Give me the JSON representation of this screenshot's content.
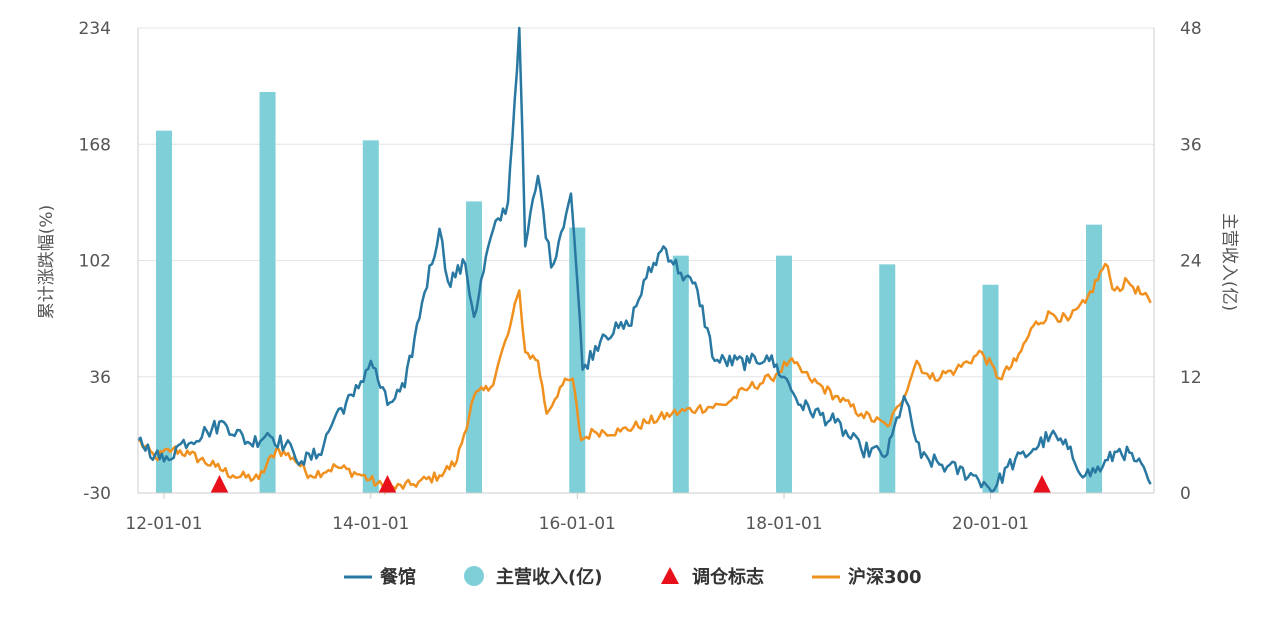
{
  "chart_data": {
    "type": "line",
    "ylabel": "累计涨跌幅(%)",
    "y2label": "主营收入(亿)",
    "ylim": [
      -30,
      234
    ],
    "y2lim": [
      0,
      48
    ],
    "yticks": [
      "234",
      "168",
      "102",
      "36",
      "-30"
    ],
    "y2ticks": [
      "48",
      "36",
      "24",
      "12",
      "0"
    ],
    "xlim": [
      "2011-10-01",
      "2021-08-01"
    ],
    "xticks": [
      "12-01-01",
      "14-01-01",
      "16-01-01",
      "18-01-01",
      "20-01-01"
    ],
    "xtick_dates": [
      "2012-01-01",
      "2014-01-01",
      "2016-01-01",
      "2018-01-01",
      "2020-01-01"
    ],
    "grid": "horizontal",
    "legend_position": "bottom",
    "colors": {
      "restaurant": "#2878a2",
      "revenue": "#7ecfd8",
      "rebalance": "#e8101a",
      "hs300": "#f0901e",
      "grid": "#e4e4e4",
      "axis": "#cccccc"
    },
    "series": [
      {
        "name": "餐馆",
        "kind": "line",
        "axis": "left",
        "points": [
          [
            "2011-10-01",
            0
          ],
          [
            "2011-12-01",
            -8
          ],
          [
            "2012-01-01",
            -12
          ],
          [
            "2012-03-01",
            -2
          ],
          [
            "2012-06-01",
            5
          ],
          [
            "2012-08-01",
            10
          ],
          [
            "2012-11-01",
            -2
          ],
          [
            "2013-01-01",
            4
          ],
          [
            "2013-04-01",
            -6
          ],
          [
            "2013-05-01",
            -12
          ],
          [
            "2013-07-01",
            -8
          ],
          [
            "2013-09-01",
            15
          ],
          [
            "2013-11-01",
            25
          ],
          [
            "2014-01-01",
            45
          ],
          [
            "2014-03-01",
            20
          ],
          [
            "2014-05-01",
            30
          ],
          [
            "2014-07-01",
            78
          ],
          [
            "2014-09-01",
            120
          ],
          [
            "2014-10-01",
            90
          ],
          [
            "2014-12-01",
            100
          ],
          [
            "2015-01-01",
            70
          ],
          [
            "2015-03-01",
            115
          ],
          [
            "2015-05-01",
            135
          ],
          [
            "2015-06-10",
            234
          ],
          [
            "2015-07-01",
            110
          ],
          [
            "2015-08-15",
            150
          ],
          [
            "2015-10-01",
            98
          ],
          [
            "2015-12-10",
            140
          ],
          [
            "2016-01-01",
            90
          ],
          [
            "2016-01-20",
            40
          ],
          [
            "2016-04-01",
            60
          ],
          [
            "2016-07-01",
            65
          ],
          [
            "2016-09-01",
            92
          ],
          [
            "2016-11-01",
            110
          ],
          [
            "2017-01-01",
            95
          ],
          [
            "2017-03-01",
            85
          ],
          [
            "2017-05-01",
            45
          ],
          [
            "2017-09-01",
            44
          ],
          [
            "2017-11-01",
            48
          ],
          [
            "2018-01-01",
            36
          ],
          [
            "2018-03-01",
            20
          ],
          [
            "2018-07-01",
            10
          ],
          [
            "2018-10-01",
            -5
          ],
          [
            "2019-01-01",
            -8
          ],
          [
            "2019-03-01",
            25
          ],
          [
            "2019-05-01",
            -10
          ],
          [
            "2019-08-01",
            -15
          ],
          [
            "2019-11-01",
            -20
          ],
          [
            "2020-01-15",
            -28
          ],
          [
            "2020-03-01",
            -15
          ],
          [
            "2020-06-01",
            -5
          ],
          [
            "2020-08-01",
            3
          ],
          [
            "2020-10-01",
            -5
          ],
          [
            "2020-12-01",
            -20
          ],
          [
            "2021-02-01",
            -15
          ],
          [
            "2021-04-01",
            -5
          ],
          [
            "2021-06-01",
            -12
          ],
          [
            "2021-07-20",
            -25
          ]
        ]
      },
      {
        "name": "主营收入(亿)",
        "kind": "bar",
        "axis": "right",
        "points": [
          [
            "2012-01-01",
            37.4
          ],
          [
            "2013-01-01",
            41.4
          ],
          [
            "2014-01-01",
            36.4
          ],
          [
            "2015-01-01",
            30.1
          ],
          [
            "2016-01-01",
            27.4
          ],
          [
            "2017-01-01",
            24.5
          ],
          [
            "2018-01-01",
            24.5
          ],
          [
            "2019-01-01",
            23.6
          ],
          [
            "2020-01-01",
            21.5
          ],
          [
            "2021-01-01",
            27.7
          ]
        ]
      },
      {
        "name": "调仓标志",
        "kind": "marker",
        "axis": "left",
        "points": [
          [
            "2012-07-15",
            -30
          ],
          [
            "2014-03-01",
            -30
          ],
          [
            "2020-07-01",
            -30
          ]
        ]
      },
      {
        "name": "沪深300",
        "kind": "line",
        "axis": "left",
        "points": [
          [
            "2011-10-01",
            0
          ],
          [
            "2011-12-01",
            -10
          ],
          [
            "2012-02-01",
            -5
          ],
          [
            "2012-04-01",
            -8
          ],
          [
            "2012-07-01",
            -15
          ],
          [
            "2012-09-01",
            -20
          ],
          [
            "2012-12-01",
            -22
          ],
          [
            "2013-02-01",
            -5
          ],
          [
            "2013-04-01",
            -10
          ],
          [
            "2013-06-01",
            -20
          ],
          [
            "2013-09-01",
            -15
          ],
          [
            "2013-12-01",
            -20
          ],
          [
            "2014-03-01",
            -28
          ],
          [
            "2014-06-01",
            -25
          ],
          [
            "2014-09-01",
            -20
          ],
          [
            "2014-11-01",
            -12
          ],
          [
            "2015-01-01",
            25
          ],
          [
            "2015-03-01",
            30
          ],
          [
            "2015-05-01",
            60
          ],
          [
            "2015-06-10",
            85
          ],
          [
            "2015-07-01",
            50
          ],
          [
            "2015-08-15",
            45
          ],
          [
            "2015-09-15",
            15
          ],
          [
            "2015-11-01",
            30
          ],
          [
            "2015-12-15",
            35
          ],
          [
            "2016-01-15",
            0
          ],
          [
            "2016-03-01",
            5
          ],
          [
            "2016-06-01",
            5
          ],
          [
            "2016-09-01",
            10
          ],
          [
            "2016-12-01",
            15
          ],
          [
            "2017-03-01",
            18
          ],
          [
            "2017-06-01",
            20
          ],
          [
            "2017-09-01",
            30
          ],
          [
            "2017-11-15",
            35
          ],
          [
            "2018-01-20",
            45
          ],
          [
            "2018-04-01",
            35
          ],
          [
            "2018-07-01",
            25
          ],
          [
            "2018-10-01",
            15
          ],
          [
            "2019-01-01",
            8
          ],
          [
            "2019-02-15",
            20
          ],
          [
            "2019-04-15",
            45
          ],
          [
            "2019-06-01",
            35
          ],
          [
            "2019-09-01",
            40
          ],
          [
            "2019-12-01",
            50
          ],
          [
            "2020-02-01",
            35
          ],
          [
            "2020-04-01",
            45
          ],
          [
            "2020-06-01",
            65
          ],
          [
            "2020-08-01",
            72
          ],
          [
            "2020-10-01",
            68
          ],
          [
            "2020-12-01",
            78
          ],
          [
            "2021-02-10",
            100
          ],
          [
            "2021-03-15",
            85
          ],
          [
            "2021-05-01",
            90
          ],
          [
            "2021-07-20",
            78
          ]
        ]
      }
    ]
  }
}
